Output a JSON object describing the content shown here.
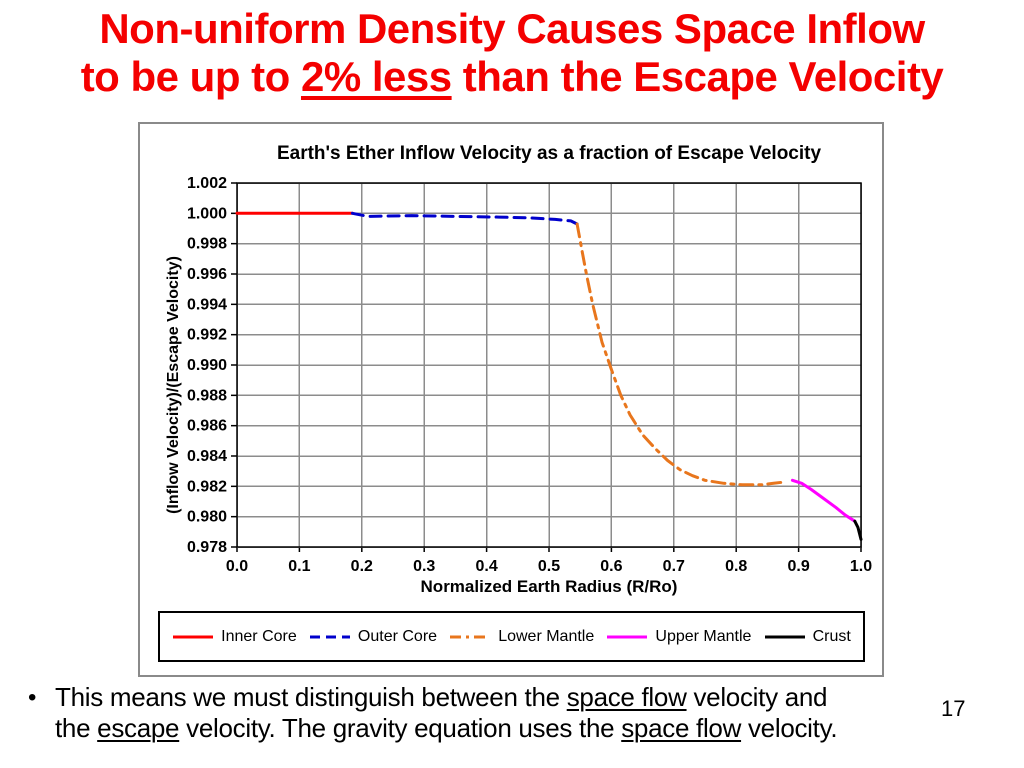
{
  "slide": {
    "title": {
      "color": "#F40000",
      "line1": "Non-uniform Density Causes Space Inflow",
      "line2_segments": [
        {
          "text": "to be up to ",
          "underline": false
        },
        {
          "text": "2% less",
          "underline": true
        },
        {
          "text": " than the Escape Velocity",
          "underline": false
        }
      ]
    },
    "bullet": {
      "marker": "•",
      "line1_segments": [
        {
          "text": "This means we must distinguish between the ",
          "underline": false
        },
        {
          "text": "space flow",
          "underline": true
        },
        {
          "text": " velocity and",
          "underline": false
        }
      ],
      "line2_segments": [
        {
          "text": "the ",
          "underline": false
        },
        {
          "text": "escape",
          "underline": true
        },
        {
          "text": " velocity. The gravity equation uses the ",
          "underline": false
        },
        {
          "text": "space flow",
          "underline": true
        },
        {
          "text": " velocity.",
          "underline": false
        }
      ]
    },
    "page_number": "17"
  },
  "chart_data": {
    "type": "line",
    "title": "Earth's Ether Inflow Velocity as a fraction of Escape Velocity",
    "xlabel": "Normalized Earth Radius (R/Ro)",
    "ylabel": "(Inflow Velocity)/(Escape Velocity)",
    "xlim": [
      0.0,
      1.0
    ],
    "ylim": [
      0.978,
      1.002
    ],
    "x_ticks": [
      "0.0",
      "0.1",
      "0.2",
      "0.3",
      "0.4",
      "0.5",
      "0.6",
      "0.7",
      "0.8",
      "0.9",
      "1.0"
    ],
    "y_ticks": [
      "1.002",
      "1.000",
      "0.998",
      "0.996",
      "0.994",
      "0.992",
      "0.990",
      "0.988",
      "0.986",
      "0.984",
      "0.982",
      "0.980",
      "0.978"
    ],
    "grid": true,
    "legend_position": "bottom",
    "colors": {
      "gridline": "#8c8c8c",
      "plot_border": "#000000"
    },
    "series": [
      {
        "name": "Inner Core",
        "color": "#FF0000",
        "style": "solid",
        "points": [
          [
            0.0,
            1.0
          ],
          [
            0.185,
            1.0
          ]
        ]
      },
      {
        "name": "Outer Core",
        "color": "#0000CC",
        "style": "dashed",
        "points": [
          [
            0.185,
            1.0
          ],
          [
            0.21,
            0.9998
          ],
          [
            0.28,
            0.99985
          ],
          [
            0.35,
            0.9998
          ],
          [
            0.42,
            0.99975
          ],
          [
            0.47,
            0.9997
          ],
          [
            0.51,
            0.9996
          ],
          [
            0.535,
            0.9995
          ],
          [
            0.545,
            0.9993
          ]
        ]
      },
      {
        "name": "Lower Mantle",
        "color": "#E8761D",
        "style": "dash-dot",
        "points": [
          [
            0.545,
            0.9993
          ],
          [
            0.553,
            0.9975
          ],
          [
            0.56,
            0.996
          ],
          [
            0.57,
            0.994
          ],
          [
            0.585,
            0.9915
          ],
          [
            0.6,
            0.9897
          ],
          [
            0.615,
            0.988
          ],
          [
            0.63,
            0.9867
          ],
          [
            0.65,
            0.9854
          ],
          [
            0.67,
            0.9845
          ],
          [
            0.69,
            0.9837
          ],
          [
            0.71,
            0.9831
          ],
          [
            0.73,
            0.9827
          ],
          [
            0.75,
            0.9824
          ],
          [
            0.78,
            0.9822
          ],
          [
            0.81,
            0.9821
          ],
          [
            0.84,
            0.9821
          ],
          [
            0.86,
            0.9822
          ],
          [
            0.88,
            0.9823
          ]
        ]
      },
      {
        "name": "Upper Mantle",
        "color": "#FF00FF",
        "style": "solid",
        "points": [
          [
            0.89,
            0.9824
          ],
          [
            0.905,
            0.9822
          ],
          [
            0.92,
            0.9818
          ],
          [
            0.94,
            0.9812
          ],
          [
            0.96,
            0.9806
          ],
          [
            0.975,
            0.9801
          ],
          [
            0.99,
            0.9797
          ]
        ]
      },
      {
        "name": "Crust",
        "color": "#000000",
        "style": "solid",
        "points": [
          [
            0.99,
            0.9797
          ],
          [
            0.995,
            0.9793
          ],
          [
            1.0,
            0.9785
          ]
        ]
      }
    ]
  }
}
